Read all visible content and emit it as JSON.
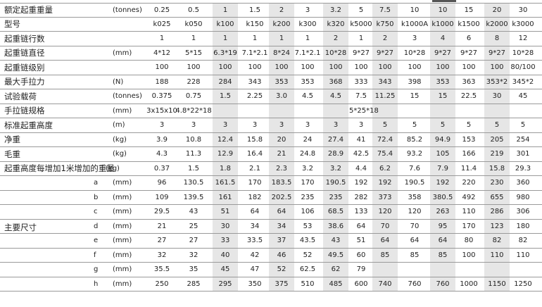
{
  "header_tag": "",
  "col_centers": [
    230,
    275,
    320,
    362,
    400,
    437,
    477,
    513,
    547,
    589,
    629,
    666,
    706,
    743
  ],
  "shade_cols": [
    2,
    4,
    6,
    8,
    10,
    12
  ],
  "rows": [
    {
      "label": "额定起重重量",
      "unit": "(tonnes)",
      "cells": [
        "0.25",
        "0.5",
        "1",
        "1.5",
        "2",
        "3",
        "3.2",
        "5",
        "7.5",
        "10",
        "10",
        "15",
        "20",
        "30"
      ]
    },
    {
      "label": "型号",
      "unit": "",
      "cells": [
        "k025",
        "k050",
        "k100",
        "k150",
        "k200",
        "k300",
        "k320",
        "k5000",
        "k750",
        "k1000A",
        "k1000",
        "k1500",
        "k2000",
        "k3000"
      ]
    },
    {
      "label": "起重链行数",
      "unit": "",
      "cells": [
        "1",
        "1",
        "1",
        "1",
        "1",
        "1",
        "2",
        "1",
        "2",
        "3",
        "4",
        "6",
        "8",
        "12"
      ]
    },
    {
      "label": "起重链直径",
      "unit": "(mm)",
      "cells": [
        "4*12",
        "5*15",
        "6.3*19",
        "7.1*2.1",
        "8*24",
        "7.1*2.1",
        "10*28",
        "9*27",
        "9*27",
        "10*28",
        "9*27",
        "9*27",
        "9*27",
        "10*28"
      ]
    },
    {
      "label": "起重链级别",
      "unit": "",
      "cells": [
        "100",
        "100",
        "100",
        "100",
        "100",
        "100",
        "100",
        "100",
        "100",
        "100",
        "100",
        "100",
        "100",
        "80/100"
      ]
    },
    {
      "label": "最大手拉力",
      "unit": "(N)",
      "cells": [
        "188",
        "228",
        "284",
        "343",
        "353",
        "353",
        "368",
        "333",
        "343",
        "398",
        "353",
        "363",
        "353*2",
        "345*2"
      ]
    },
    {
      "label": "试验载荷",
      "unit": "(tonnes)",
      "cells": [
        "0.375",
        "0.75",
        "1.5",
        "2.25",
        "3.0",
        "4.5",
        "4.5",
        "7.5",
        "11.25",
        "15",
        "15",
        "22.5",
        "30",
        "45"
      ]
    },
    {
      "label": "手拉链规格",
      "unit": "(mm)",
      "cells": [
        "3x15x10",
        "4.8*22*18",
        "",
        "",
        "",
        "",
        "",
        "",
        "",
        "",
        "",
        "",
        "",
        ""
      ],
      "span_text": "5*25*18"
    },
    {
      "label": "标准起重高度",
      "unit": "(m)",
      "cells": [
        "3",
        "3",
        "3",
        "3",
        "3",
        "3",
        "3",
        "3",
        "5",
        "5",
        "5",
        "5",
        "5",
        "5"
      ]
    },
    {
      "label": "净重",
      "unit": "(kg)",
      "cells": [
        "3.9",
        "10.8",
        "12.4",
        "15.8",
        "20",
        "24",
        "27.4",
        "41",
        "72.4",
        "85.2",
        "94.9",
        "153",
        "205",
        "254"
      ]
    },
    {
      "label": "毛重",
      "unit": "(kg)",
      "cells": [
        "4.3",
        "11.3",
        "12.9",
        "16.4",
        "21",
        "24.8",
        "28.9",
        "42.5",
        "75.4",
        "93.2",
        "105",
        "166",
        "219",
        "301"
      ]
    },
    {
      "label": "起重高度每增加1米增加的重量",
      "unit": "(kg)",
      "cells": [
        "0.37",
        "1.5",
        "1.8",
        "2.1",
        "2.3",
        "3.2",
        "3.2",
        "4.4",
        "6.2",
        "7.6",
        "7.9",
        "11.4",
        "15.8",
        "29.3"
      ]
    }
  ],
  "dims_label": "主要尺寸",
  "dims_unit": "(mm)",
  "dims": [
    {
      "sub": "a",
      "cells": [
        "96",
        "130.5",
        "161.5",
        "170",
        "183.5",
        "170",
        "190.5",
        "192",
        "192",
        "190.5",
        "192",
        "220",
        "230",
        "360"
      ]
    },
    {
      "sub": "b",
      "cells": [
        "109",
        "139.5",
        "161",
        "182",
        "202.5",
        "235",
        "235",
        "282",
        "373",
        "358",
        "380.5",
        "492",
        "655",
        "980"
      ]
    },
    {
      "sub": "c",
      "cells": [
        "29.5",
        "43",
        "51",
        "64",
        "64",
        "106",
        "68.5",
        "133",
        "120",
        "120",
        "263",
        "110",
        "286",
        "306"
      ]
    },
    {
      "sub": "d",
      "cells": [
        "21",
        "25",
        "30",
        "34",
        "34",
        "53",
        "38.6",
        "64",
        "70",
        "70",
        "95",
        "170",
        "123",
        "180"
      ]
    },
    {
      "sub": "e",
      "cells": [
        "27",
        "27",
        "33",
        "33.5",
        "37",
        "43.5",
        "43",
        "51",
        "64",
        "64",
        "64",
        "80",
        "82",
        "82"
      ]
    },
    {
      "sub": "f",
      "cells": [
        "32",
        "32",
        "40",
        "42",
        "46",
        "52",
        "49.5",
        "60",
        "85",
        "85",
        "85",
        "100",
        "110",
        "110"
      ]
    },
    {
      "sub": "g",
      "cells": [
        "35.5",
        "35",
        "45",
        "47",
        "52",
        "62.5",
        "62",
        "79",
        "",
        "",
        "",
        "",
        "",
        ""
      ]
    },
    {
      "sub": "h",
      "cells": [
        "250",
        "285",
        "295",
        "350",
        "375",
        "510",
        "485",
        "600",
        "740",
        "760",
        "760",
        "1000",
        "1150",
        "1250"
      ]
    }
  ]
}
